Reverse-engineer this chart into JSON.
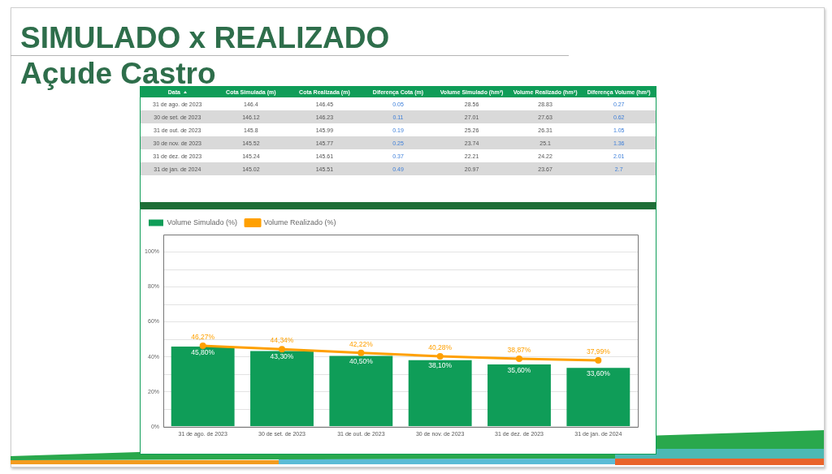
{
  "chart_data": [
    {
      "type": "heatmap",
      "title": "SIMULADO x REALIZADO",
      "subtitle": "Açude Castro",
      "ylabel": "Data",
      "categories": [
        "Cota Simulada (m)",
        "Cota Realizada (m)",
        "Diferença Cota (m)",
        "Volume Simulado (hm³)",
        "Volume Realizado (hm³)",
        "Diferença Volume (hm³)"
      ],
      "y_categories": [
        "31 de ago. de 2023",
        "30 de set. de 2023",
        "31 de out. de 2023",
        "30 de nov. de 2023",
        "31 de dez. de 2023",
        "31 de jan. de 2024"
      ],
      "cells": [
        [
          146.4,
          146.45,
          0.05,
          28.56,
          28.83,
          0.27
        ],
        [
          146.12,
          146.23,
          0.11,
          27.01,
          27.63,
          0.62
        ],
        [
          145.8,
          145.99,
          0.19,
          25.26,
          26.31,
          1.05
        ],
        [
          145.52,
          145.77,
          0.25,
          23.74,
          25.1,
          1.36
        ],
        [
          145.24,
          145.61,
          0.37,
          22.21,
          24.22,
          2.01
        ],
        [
          145.02,
          145.51,
          0.49,
          20.97,
          23.67,
          2.7
        ]
      ],
      "data_labels": true
    },
    {
      "type": "bar",
      "categories": [
        "31 de ago. de 2023",
        "30 de set. de 2023",
        "31 de out. de 2023",
        "30 de nov. de 2023",
        "31 de dez. de 2023",
        "31 de jan. de 2024"
      ],
      "series": [
        {
          "name": "Volume Simulado (%)",
          "color": "#0f9d58",
          "values": [
            45.8,
            43.3,
            40.5,
            38.1,
            35.6,
            33.6
          ],
          "value_labels": [
            "45,80%",
            "43,30%",
            "40,50%",
            "38,10%",
            "35,60%",
            "33,60%"
          ]
        },
        {
          "name": "Volume Realizado (%)",
          "type": "line",
          "color": "#ffa000",
          "values": [
            46.27,
            44.34,
            42.22,
            40.28,
            38.87,
            37.99
          ],
          "value_labels": [
            "46,27%",
            "44,34%",
            "42,22%",
            "40,28%",
            "38,87%",
            "37,99%"
          ]
        }
      ],
      "ylim": [
        0,
        110
      ],
      "yticks": [
        {
          "value": 0,
          "label": "0%"
        },
        {
          "value": 10,
          "label": null
        },
        {
          "value": 20,
          "label": "20%"
        },
        {
          "value": 30,
          "label": null
        },
        {
          "value": 40,
          "label": "40%"
        },
        {
          "value": 50,
          "label": null
        },
        {
          "value": 60,
          "label": "60%"
        },
        {
          "value": 70,
          "label": null
        },
        {
          "value": 80,
          "label": "80%"
        },
        {
          "value": 90,
          "label": null
        },
        {
          "value": 100,
          "label": "100%"
        }
      ],
      "grid": "y",
      "legend": "top left",
      "marker": "circle"
    }
  ]
}
